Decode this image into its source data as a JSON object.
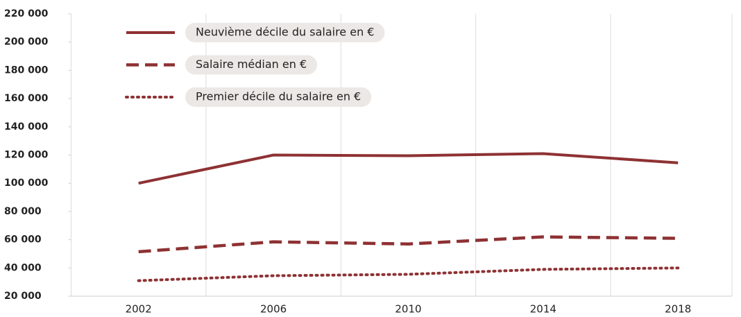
{
  "chart_data": {
    "type": "line",
    "x": [
      2002,
      2006,
      2010,
      2014,
      2018
    ],
    "series": [
      {
        "name": "Neuvième décile du salaire en €",
        "color": "#8e3133",
        "dash": "solid",
        "values": [
          100000,
          120000,
          119500,
          121000,
          114500
        ]
      },
      {
        "name": "Salaire médian en €",
        "color": "#8e3133",
        "dash": "dashed",
        "values": [
          51500,
          58500,
          57000,
          62000,
          61000
        ]
      },
      {
        "name": "Premier décile du salaire en €",
        "color": "#8e3133",
        "dash": "dotted",
        "values": [
          31000,
          34500,
          35500,
          39000,
          40000
        ]
      }
    ],
    "xlim": [
      2000,
      2019.6
    ],
    "xticks": [
      2002,
      2006,
      2010,
      2014,
      2018
    ],
    "xgrid": [
      2000,
      2004,
      2008,
      2012,
      2016
    ],
    "ylim": [
      20000,
      220000
    ],
    "yticks": [
      {
        "value": 20000,
        "label": "20 000"
      },
      {
        "value": 40000,
        "label": "40 000"
      },
      {
        "value": 60000,
        "label": "60 000"
      },
      {
        "value": 80000,
        "label": "80 000"
      },
      {
        "value": 100000,
        "label": "100 000"
      },
      {
        "value": 120000,
        "label": "120 000"
      },
      {
        "value": 140000,
        "label": "140 000"
      },
      {
        "value": 160000,
        "label": "160 000"
      },
      {
        "value": 180000,
        "label": "180 000"
      },
      {
        "value": 200000,
        "label": "200 000"
      },
      {
        "value": 220000,
        "label": "220 000"
      }
    ],
    "legend": "top-left"
  }
}
